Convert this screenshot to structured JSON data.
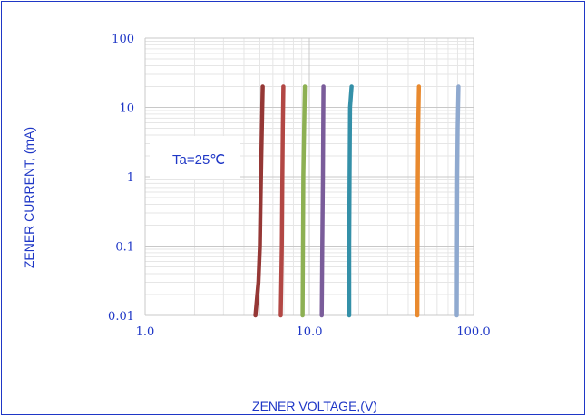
{
  "chart_data": {
    "type": "line",
    "xlabel": "ZENER VOLTAGE,(V)",
    "ylabel": "ZENER CURRENT, (mA)",
    "x_scale": "log",
    "y_scale": "log",
    "xlim": [
      1.0,
      100.0
    ],
    "ylim": [
      0.01,
      100
    ],
    "x_ticks": [
      "1.0",
      "10.0",
      "100.0"
    ],
    "y_ticks": [
      "0.01",
      "0.1",
      "1",
      "10",
      "100"
    ],
    "grid": true,
    "annotation": "Ta=25℃",
    "series": [
      {
        "color": "#953735",
        "points": [
          [
            4.7,
            0.01
          ],
          [
            4.9,
            0.03
          ],
          [
            5.0,
            0.1
          ],
          [
            5.05,
            0.5
          ],
          [
            5.1,
            2
          ],
          [
            5.2,
            20
          ]
        ]
      },
      {
        "color": "#b24744",
        "points": [
          [
            6.7,
            0.01
          ],
          [
            6.8,
            0.1
          ],
          [
            6.85,
            1
          ],
          [
            6.9,
            5
          ],
          [
            6.95,
            20
          ]
        ]
      },
      {
        "color": "#8db053",
        "points": [
          [
            9.1,
            0.01
          ],
          [
            9.15,
            0.1
          ],
          [
            9.2,
            1
          ],
          [
            9.3,
            5
          ],
          [
            9.4,
            20
          ]
        ]
      },
      {
        "color": "#7a5c9a",
        "points": [
          [
            11.9,
            0.01
          ],
          [
            12.0,
            0.1
          ],
          [
            12.1,
            1
          ],
          [
            12.15,
            5
          ],
          [
            12.2,
            20
          ]
        ]
      },
      {
        "color": "#3490a8",
        "points": [
          [
            17.5,
            0.01
          ],
          [
            17.5,
            0.1
          ],
          [
            17.6,
            1
          ],
          [
            17.7,
            10
          ],
          [
            18.1,
            20
          ]
        ]
      },
      {
        "color": "#e98a2f",
        "points": [
          [
            45.5,
            0.01
          ],
          [
            45.6,
            0.1
          ],
          [
            45.8,
            1
          ],
          [
            46.0,
            5
          ],
          [
            46.5,
            20
          ]
        ]
      },
      {
        "color": "#8fa9cf",
        "points": [
          [
            79.0,
            0.01
          ],
          [
            79.2,
            0.1
          ],
          [
            79.5,
            1
          ],
          [
            80.0,
            5
          ],
          [
            81.0,
            20
          ]
        ]
      }
    ]
  }
}
